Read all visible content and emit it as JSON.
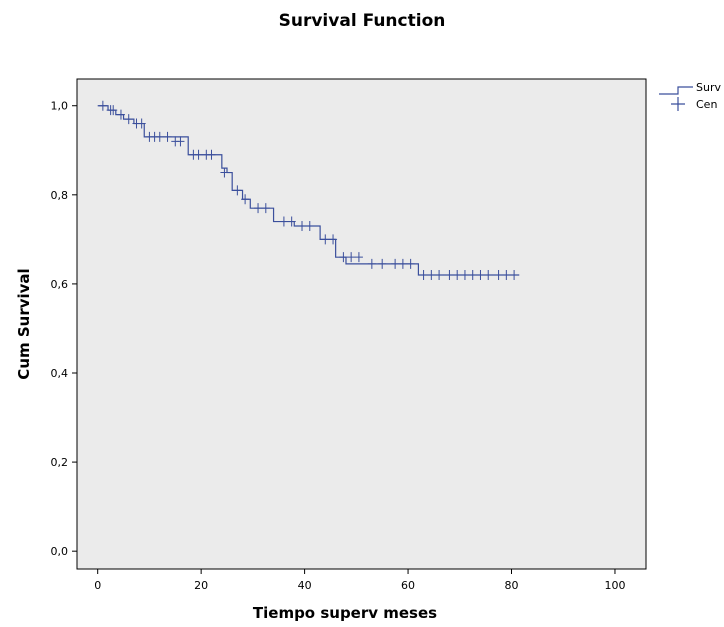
{
  "chart_data": {
    "type": "line",
    "title": "Survival Function",
    "xlabel": "Tiempo superv meses",
    "ylabel": "Cum Survival",
    "xlim": [
      -4,
      106
    ],
    "ylim": [
      -0.04,
      1.06
    ],
    "xticks": [
      0,
      20,
      40,
      60,
      80,
      100
    ],
    "xtick_labels": [
      "0",
      "20",
      "40",
      "60",
      "80",
      "100"
    ],
    "yticks": [
      0.0,
      0.2,
      0.4,
      0.6,
      0.8,
      1.0
    ],
    "ytick_labels": [
      "0,0",
      "0,2",
      "0,4",
      "0,6",
      "0,8",
      "1,0"
    ],
    "grid": false,
    "plot_background": "#ebebeb",
    "line_color": "#3b4f9c",
    "legend": {
      "position": "right",
      "entries": [
        {
          "label": "Surv",
          "marker": "step-line"
        },
        {
          "label": "Cen",
          "marker": "plus"
        }
      ]
    },
    "series": [
      {
        "name": "Surv",
        "kind": "step",
        "x": [
          0,
          2,
          3.5,
          5,
          7,
          9,
          17.5,
          24,
          25,
          26,
          28,
          29.5,
          34,
          38,
          43,
          46,
          48,
          62,
          81.5
        ],
        "y": [
          1.0,
          0.99,
          0.98,
          0.97,
          0.96,
          0.93,
          0.89,
          0.86,
          0.85,
          0.81,
          0.79,
          0.77,
          0.74,
          0.73,
          0.7,
          0.66,
          0.645,
          0.62,
          0.62
        ]
      },
      {
        "name": "Cen",
        "kind": "censored",
        "x": [
          1,
          2.5,
          3,
          4.5,
          6,
          7.5,
          8.5,
          10,
          11,
          12,
          13.5,
          15,
          16,
          18.5,
          19.5,
          21,
          22,
          24.5,
          27,
          28.5,
          31,
          32.5,
          36,
          37.5,
          39.5,
          41,
          44,
          45.5,
          47.5,
          49,
          50.5,
          53,
          55,
          57.5,
          59,
          60.5,
          63,
          64.5,
          66,
          68,
          69.5,
          71,
          72.5,
          74,
          75.5,
          77.5,
          79,
          80.5
        ],
        "y": [
          1.0,
          0.99,
          0.99,
          0.98,
          0.97,
          0.96,
          0.96,
          0.93,
          0.93,
          0.93,
          0.93,
          0.92,
          0.92,
          0.89,
          0.89,
          0.89,
          0.89,
          0.85,
          0.81,
          0.79,
          0.77,
          0.77,
          0.74,
          0.74,
          0.73,
          0.73,
          0.7,
          0.7,
          0.66,
          0.66,
          0.66,
          0.645,
          0.645,
          0.645,
          0.645,
          0.645,
          0.62,
          0.62,
          0.62,
          0.62,
          0.62,
          0.62,
          0.62,
          0.62,
          0.62,
          0.62,
          0.62,
          0.62
        ]
      }
    ]
  }
}
